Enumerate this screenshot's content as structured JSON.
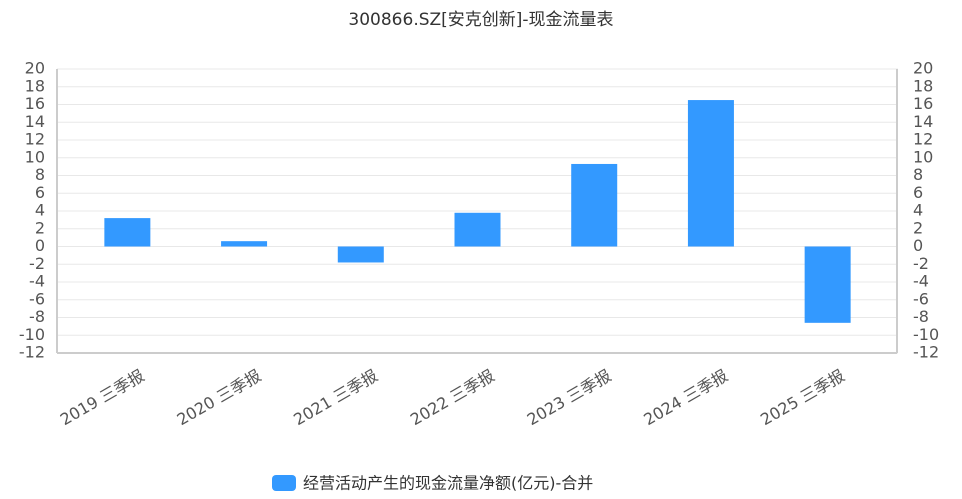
{
  "chart_data": {
    "type": "bar",
    "title": "300866.SZ[安克创新]-现金流量表",
    "categories": [
      "2019 三季报",
      "2020 三季报",
      "2021 三季报",
      "2022 三季报",
      "2023 三季报",
      "2024 三季报",
      "2025 三季报"
    ],
    "series": [
      {
        "name": "经营活动产生的现金流量净额(亿元)-合并",
        "color": "#3399ff",
        "values": [
          3.2,
          0.6,
          -1.8,
          3.8,
          9.3,
          16.5,
          -8.6
        ]
      }
    ],
    "ylim": [
      -12,
      20
    ],
    "yticks": [
      -12,
      -10,
      -8,
      -6,
      -4,
      -2,
      0,
      2,
      4,
      6,
      8,
      10,
      12,
      14,
      16,
      18,
      20
    ],
    "y2lim": [
      -12,
      20
    ],
    "y2ticks": [
      -12,
      -10,
      -8,
      -6,
      -4,
      -2,
      0,
      2,
      4,
      6,
      8,
      10,
      12,
      14,
      16,
      18,
      20
    ],
    "grid": true,
    "legend": "bottom"
  }
}
